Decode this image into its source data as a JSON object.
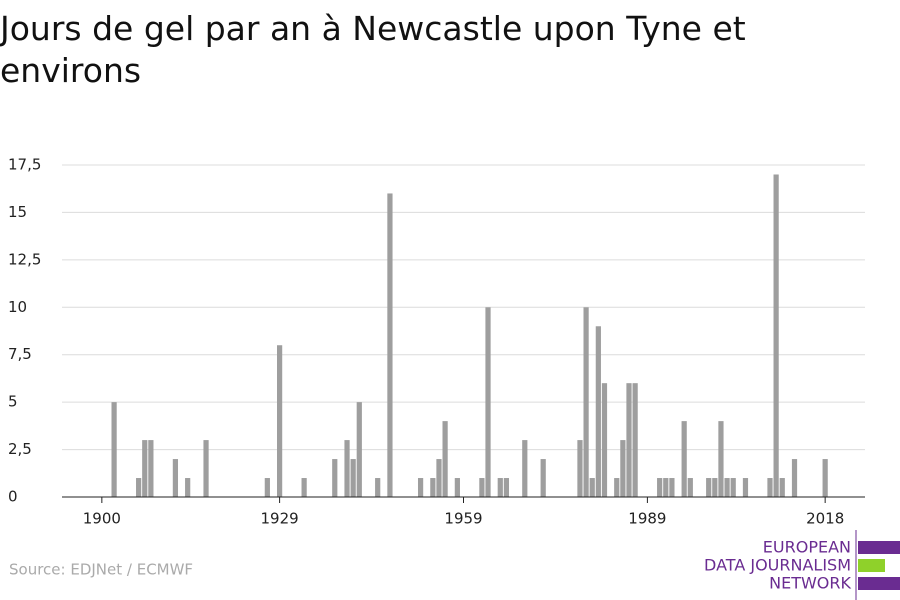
{
  "chart_data": {
    "type": "bar",
    "title": "Jours de gel par an à Newcastle upon Tyne et environs",
    "x": [
      1902,
      1906,
      1907,
      1908,
      1912,
      1914,
      1917,
      1927,
      1929,
      1933,
      1938,
      1940,
      1941,
      1942,
      1945,
      1947,
      1952,
      1954,
      1955,
      1956,
      1958,
      1962,
      1963,
      1965,
      1966,
      1969,
      1972,
      1978,
      1979,
      1980,
      1981,
      1982,
      1984,
      1985,
      1986,
      1987,
      1991,
      1992,
      1993,
      1995,
      1996,
      1999,
      2000,
      2001,
      2002,
      2003,
      2005,
      2009,
      2010,
      2011,
      2013,
      2018
    ],
    "values": [
      5,
      1,
      3,
      3,
      2,
      1,
      3,
      1,
      8,
      1,
      2,
      3,
      2,
      5,
      1,
      16,
      1,
      1,
      2,
      4,
      1,
      1,
      10,
      1,
      1,
      3,
      2,
      3,
      10,
      1,
      9,
      6,
      1,
      3,
      6,
      6,
      1,
      1,
      1,
      4,
      1,
      1,
      1,
      4,
      1,
      1,
      1,
      1,
      17,
      1,
      2,
      2
    ],
    "color": "#9e9e9e",
    "xlim": [
      1893.5,
      2024.5
    ],
    "xticks": [
      1900,
      1929,
      1959,
      1989,
      2018
    ],
    "ylim": [
      0,
      17.5
    ],
    "yticks": [
      0,
      {
        "value": 2.5,
        "label": "2,5"
      },
      5,
      {
        "value": 7.5,
        "label": "7,5"
      },
      10,
      {
        "value": 12.5,
        "label": "12,5"
      },
      15,
      {
        "value": 17.5,
        "label": "17,5"
      }
    ],
    "grid": true,
    "source": "Source: EDJNet / ECMWF",
    "logo": [
      "EUROPEAN",
      "DATA JOURNALISM",
      "NETWORK"
    ]
  }
}
